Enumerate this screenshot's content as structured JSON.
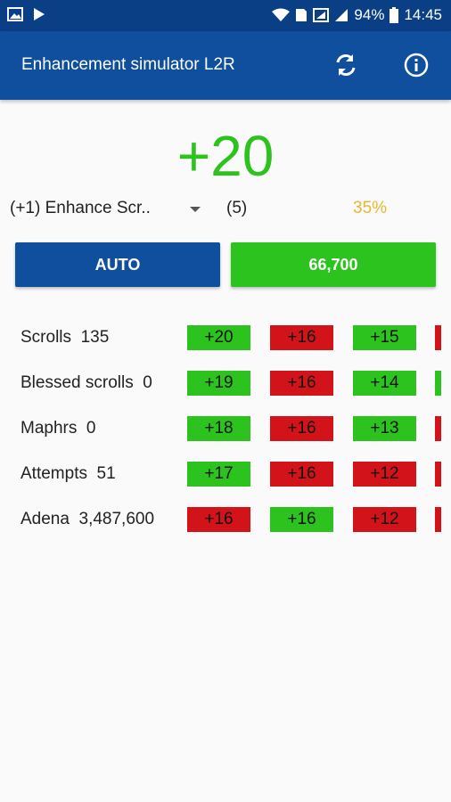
{
  "status": {
    "battery": "94%",
    "time": "14:45"
  },
  "app": {
    "title": "Enhancement simulator L2R"
  },
  "result": {
    "value": "+20"
  },
  "controls": {
    "scroll_select": "(+1) Enhance Scr..",
    "count": "(5)",
    "chance": "35%",
    "auto_label": "AUTO",
    "cost_label": "66,700"
  },
  "stats": [
    {
      "label": "Scrolls",
      "value": "135"
    },
    {
      "label": "Blessed scrolls",
      "value": "0"
    },
    {
      "label": "Maphrs",
      "value": "0"
    },
    {
      "label": "Attempts",
      "value": "51"
    },
    {
      "label": "Adena",
      "value": "3,487,600"
    }
  ],
  "history": [
    [
      {
        "text": "+20",
        "status": "success"
      },
      {
        "text": "+16",
        "status": "fail"
      },
      {
        "text": "+15",
        "status": "success"
      },
      {
        "status": "fail"
      }
    ],
    [
      {
        "text": "+19",
        "status": "success"
      },
      {
        "text": "+16",
        "status": "fail"
      },
      {
        "text": "+14",
        "status": "success"
      },
      {
        "status": "success"
      }
    ],
    [
      {
        "text": "+18",
        "status": "success"
      },
      {
        "text": "+16",
        "status": "fail"
      },
      {
        "text": "+13",
        "status": "success"
      },
      {
        "status": "fail"
      }
    ],
    [
      {
        "text": "+17",
        "status": "success"
      },
      {
        "text": "+16",
        "status": "fail"
      },
      {
        "text": "+12",
        "status": "fail"
      },
      {
        "status": "fail"
      }
    ],
    [
      {
        "text": "+16",
        "status": "fail"
      },
      {
        "text": "+16",
        "status": "success"
      },
      {
        "text": "+12",
        "status": "fail"
      },
      {
        "status": "fail"
      }
    ]
  ],
  "colors": {
    "success": "#2dc31e",
    "fail": "#d2141a",
    "appbar": "#0f4f9e",
    "chance": "#e8b830"
  }
}
